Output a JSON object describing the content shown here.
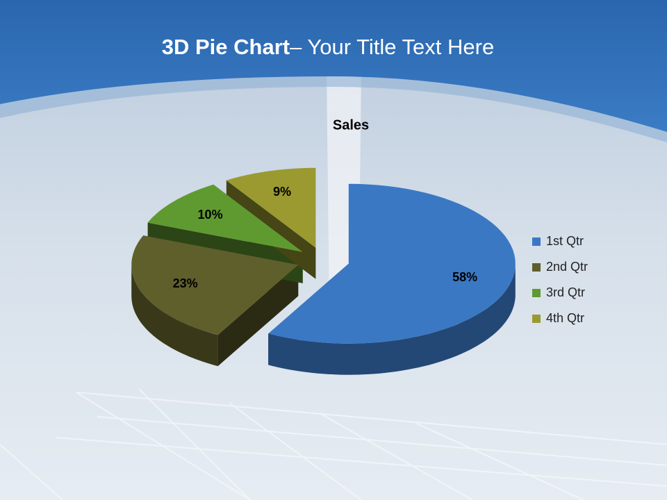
{
  "slide": {
    "title_bold": "3D Pie Chart",
    "title_rest": "– Your Title Text Here"
  },
  "chart_data": {
    "type": "pie3d",
    "title": "Sales",
    "categories": [
      "1st Qtr",
      "2nd Qtr",
      "3rd Qtr",
      "4th Qtr"
    ],
    "values": [
      58,
      23,
      10,
      9
    ],
    "value_labels": [
      "58%",
      "23%",
      "10%",
      "9%"
    ],
    "colors": [
      "#3a78c4",
      "#5f5f2c",
      "#5f9a30",
      "#9a9a30"
    ],
    "legend": "right"
  }
}
